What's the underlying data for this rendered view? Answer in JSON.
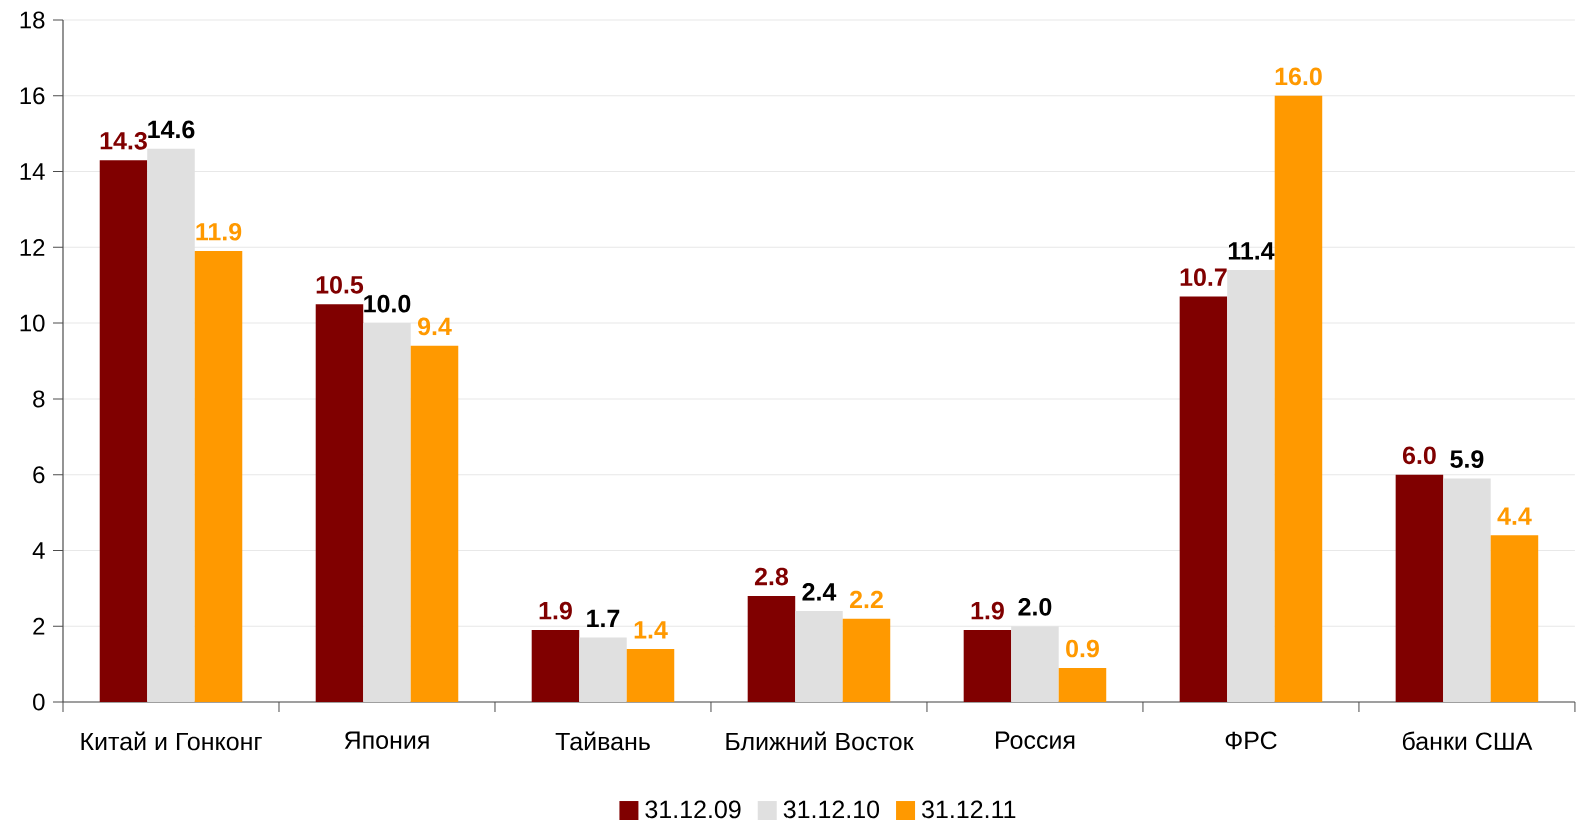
{
  "chart_data": {
    "type": "bar",
    "categories": [
      "Китай и Гонконг",
      "Япония",
      "Тайвань",
      "Ближний Восток",
      "Россия",
      "ФРС",
      "банки США"
    ],
    "series": [
      {
        "name": "31.12.09",
        "color": "#800000",
        "values": [
          14.3,
          10.5,
          1.9,
          2.8,
          1.9,
          10.7,
          6.0
        ],
        "value_labels": [
          "14.3",
          "10.5",
          "1.9",
          "2.8",
          "1.9",
          "10.7",
          "6.0"
        ]
      },
      {
        "name": "31.12.10",
        "color": "#e0e0e0",
        "values": [
          14.6,
          10.0,
          1.7,
          2.4,
          2.0,
          11.4,
          5.9
        ],
        "value_labels": [
          "14.6",
          "10.0",
          "1.7",
          "2.4",
          "2.0",
          "11.4",
          "5.9"
        ]
      },
      {
        "name": "31.12.11",
        "color": "#ff9900",
        "values": [
          11.9,
          9.4,
          1.4,
          2.2,
          0.9,
          16.0,
          4.4
        ],
        "value_labels": [
          "11.9",
          "9.4",
          "1.4",
          "2.2",
          "0.9",
          "16.0",
          "4.4"
        ]
      }
    ],
    "ylim": [
      0,
      18
    ],
    "yticks": [
      0,
      2,
      4,
      6,
      8,
      10,
      12,
      14,
      16,
      18
    ],
    "grid": "y",
    "legend": "bottom"
  }
}
